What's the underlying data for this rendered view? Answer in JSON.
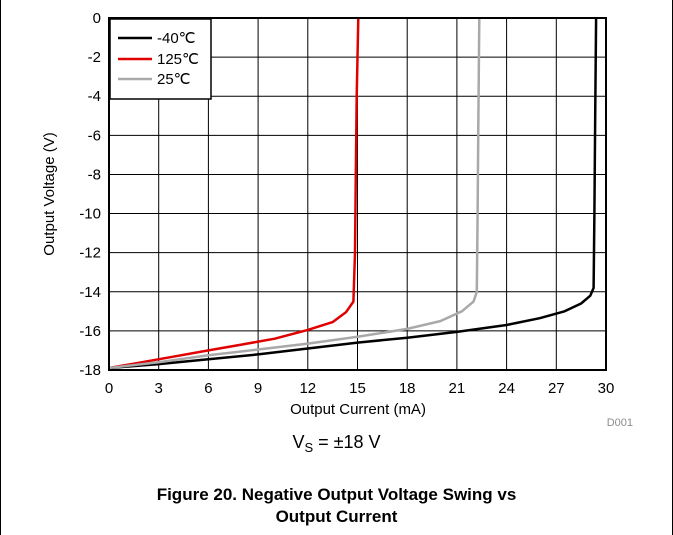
{
  "chart_data": {
    "type": "line",
    "xlabel": "Output Current (mA)",
    "ylabel": "Output Voltage (V)",
    "xlim": [
      0,
      30
    ],
    "ylim": [
      -18,
      0
    ],
    "x_ticks": [
      "0",
      "3",
      "6",
      "9",
      "12",
      "15",
      "18",
      "21",
      "24",
      "27",
      "30"
    ],
    "y_ticks": [
      "0",
      "-2",
      "-4",
      "-6",
      "-8",
      "-10",
      "-12",
      "-14",
      "-16",
      "-18"
    ],
    "grid": true,
    "legend_position": "top-left",
    "series": [
      {
        "name": "-40℃",
        "color": "#000000",
        "points": [
          [
            0,
            -17.9
          ],
          [
            3,
            -17.7
          ],
          [
            6,
            -17.45
          ],
          [
            9,
            -17.2
          ],
          [
            12,
            -16.9
          ],
          [
            15,
            -16.6
          ],
          [
            18,
            -16.35
          ],
          [
            21,
            -16.05
          ],
          [
            24,
            -15.7
          ],
          [
            26,
            -15.35
          ],
          [
            27.5,
            -15.0
          ],
          [
            28.5,
            -14.6
          ],
          [
            29.05,
            -14.2
          ],
          [
            29.25,
            -13.8
          ],
          [
            29.3,
            -10
          ],
          [
            29.35,
            -5
          ],
          [
            29.4,
            0
          ]
        ]
      },
      {
        "name": "125℃",
        "color": "#e00000",
        "points": [
          [
            0,
            -17.9
          ],
          [
            2,
            -17.6
          ],
          [
            4,
            -17.3
          ],
          [
            6,
            -17.0
          ],
          [
            8,
            -16.7
          ],
          [
            10,
            -16.4
          ],
          [
            12,
            -15.95
          ],
          [
            13.5,
            -15.55
          ],
          [
            14.3,
            -15.05
          ],
          [
            14.75,
            -14.5
          ],
          [
            14.85,
            -12
          ],
          [
            14.9,
            -8
          ],
          [
            14.95,
            -4
          ],
          [
            15.05,
            0
          ]
        ]
      },
      {
        "name": "25℃",
        "color": "#a9a9a9",
        "points": [
          [
            0,
            -17.9
          ],
          [
            3,
            -17.6
          ],
          [
            6,
            -17.25
          ],
          [
            9,
            -16.95
          ],
          [
            12,
            -16.65
          ],
          [
            15,
            -16.3
          ],
          [
            18,
            -15.9
          ],
          [
            20,
            -15.5
          ],
          [
            21.3,
            -15.0
          ],
          [
            22.0,
            -14.5
          ],
          [
            22.2,
            -14.0
          ],
          [
            22.25,
            -10
          ],
          [
            22.3,
            -5
          ],
          [
            22.35,
            0
          ]
        ]
      }
    ]
  },
  "labels": {
    "figure_id": "D001",
    "condition_main": "V",
    "condition_sub": "S",
    "condition_rest": " = ±18 V",
    "caption_line1": "Figure 20. Negative Output Voltage Swing vs",
    "caption_line2": "Output Current"
  }
}
